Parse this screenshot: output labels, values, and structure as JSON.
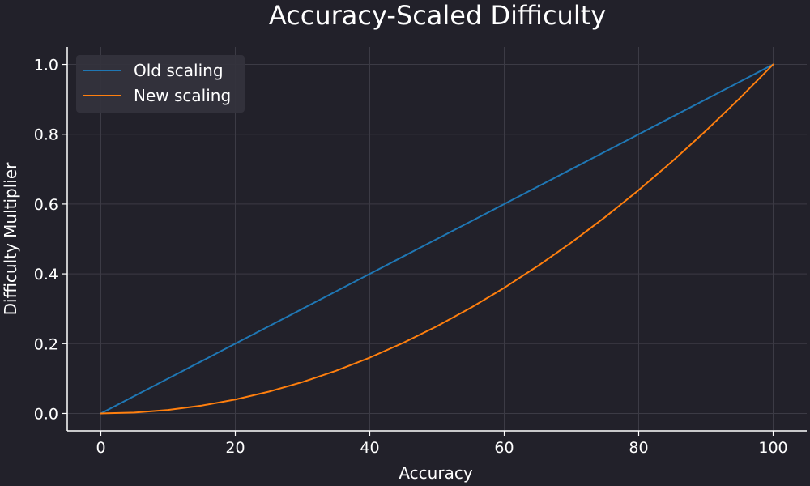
{
  "chart_data": {
    "type": "line",
    "title": "Accuracy-Scaled Difficulty",
    "xlabel": "Accuracy",
    "ylabel": "Difficulty Multiplier",
    "xlim": [
      -5,
      105
    ],
    "ylim": [
      -0.05,
      1.05
    ],
    "xticks": [
      0,
      20,
      40,
      60,
      80,
      100
    ],
    "yticks": [
      0.0,
      0.2,
      0.4,
      0.6,
      0.8,
      1.0
    ],
    "xtick_labels": [
      "0",
      "20",
      "40",
      "60",
      "80",
      "100"
    ],
    "ytick_labels": [
      "0.0",
      "0.2",
      "0.4",
      "0.6",
      "0.8",
      "1.0"
    ],
    "grid": true,
    "legend_position": "top-left",
    "x": [
      0,
      5,
      10,
      15,
      20,
      25,
      30,
      35,
      40,
      45,
      50,
      55,
      60,
      65,
      70,
      75,
      80,
      85,
      90,
      95,
      100
    ],
    "series": [
      {
        "name": "Old scaling",
        "color": "#1f77b4",
        "values": [
          0.0,
          0.05,
          0.1,
          0.15,
          0.2,
          0.25,
          0.3,
          0.35,
          0.4,
          0.45,
          0.5,
          0.55,
          0.6,
          0.65,
          0.7,
          0.75,
          0.8,
          0.85,
          0.9,
          0.95,
          1.0
        ]
      },
      {
        "name": "New scaling",
        "color": "#ff7f0e",
        "values": [
          0.0,
          0.0025,
          0.01,
          0.0225,
          0.04,
          0.0625,
          0.09,
          0.1225,
          0.16,
          0.2025,
          0.25,
          0.3025,
          0.36,
          0.4225,
          0.49,
          0.5625,
          0.64,
          0.7225,
          0.81,
          0.9025,
          1.0
        ]
      }
    ]
  },
  "colors": {
    "background": "#22212a",
    "grid": "#3c3b45",
    "axis": "#ffffff",
    "legend_background": "#34333d"
  }
}
